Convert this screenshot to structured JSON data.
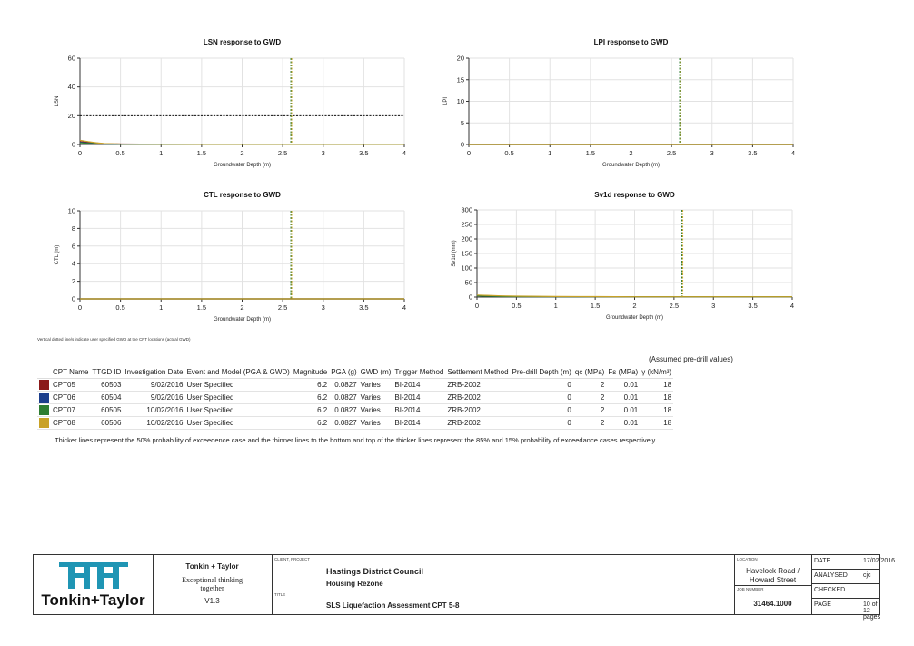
{
  "chart_data": [
    {
      "type": "line",
      "title": "LSN response to GWD",
      "xlabel": "Groundwater Depth (m)",
      "ylabel": "LSN",
      "xlim": [
        0,
        4
      ],
      "ylim": [
        0,
        60
      ],
      "x_ticks": [
        "0",
        "0.5",
        "1",
        "1.5",
        "2",
        "2.5",
        "3",
        "3.5",
        "4"
      ],
      "y_ticks": [
        "0",
        "20",
        "40",
        "60"
      ],
      "x": [
        0,
        0.1,
        0.2,
        0.3,
        0.5,
        1,
        1.5,
        2,
        2.5,
        3,
        3.5,
        4
      ],
      "series": [
        {
          "name": "CPT05",
          "color": "#8b1a1a",
          "values": [
            2,
            1.5,
            1,
            0.5,
            0.3,
            0.2,
            0.1,
            0.1,
            0.1,
            0.1,
            0.1,
            0.1
          ]
        },
        {
          "name": "CPT06",
          "color": "#1c3e8c",
          "values": [
            1.5,
            1,
            0.6,
            0.3,
            0.2,
            0.1,
            0.1,
            0.1,
            0.1,
            0.1,
            0.1,
            0.1
          ]
        },
        {
          "name": "CPT07",
          "color": "#2e7d32",
          "values": [
            1.2,
            0.8,
            0.5,
            0.3,
            0.2,
            0.1,
            0.1,
            0.1,
            0.1,
            0.1,
            0.1,
            0.1
          ]
        },
        {
          "name": "CPT08",
          "color": "#c9a227",
          "values": [
            3,
            2,
            1.2,
            0.6,
            0.3,
            0.2,
            0.1,
            0.1,
            0.1,
            0.1,
            0.1,
            0.1
          ]
        }
      ],
      "hline": 20,
      "vline": 2.6
    },
    {
      "type": "line",
      "title": "LPI response to GWD",
      "xlabel": "Groundwater Depth (m)",
      "ylabel": "LPI",
      "xlim": [
        0,
        4
      ],
      "ylim": [
        0,
        20
      ],
      "x_ticks": [
        "0",
        "0.5",
        "1",
        "1.5",
        "2",
        "2.5",
        "3",
        "3.5",
        "4"
      ],
      "y_ticks": [
        "0",
        "5",
        "10",
        "15",
        "20"
      ],
      "x": [
        0,
        4
      ],
      "series": [
        {
          "name": "CPT05",
          "color": "#8b1a1a",
          "values": [
            0,
            0
          ]
        },
        {
          "name": "CPT06",
          "color": "#1c3e8c",
          "values": [
            0,
            0
          ]
        },
        {
          "name": "CPT07",
          "color": "#2e7d32",
          "values": [
            0,
            0
          ]
        },
        {
          "name": "CPT08",
          "color": "#c9a227",
          "values": [
            0,
            0
          ]
        }
      ],
      "vline": 2.6
    },
    {
      "type": "line",
      "title": "CTL response to GWD",
      "xlabel": "Groundwater Depth (m)",
      "ylabel": "CTL (m)",
      "xlim": [
        0,
        4
      ],
      "ylim": [
        0,
        10
      ],
      "x_ticks": [
        "0",
        "0.5",
        "1",
        "1.5",
        "2",
        "2.5",
        "3",
        "3.5",
        "4"
      ],
      "y_ticks": [
        "0",
        "2",
        "4",
        "6",
        "8",
        "10"
      ],
      "x": [
        0,
        4
      ],
      "series": [
        {
          "name": "CPT05",
          "color": "#8b1a1a",
          "values": [
            0,
            0
          ]
        },
        {
          "name": "CPT06",
          "color": "#1c3e8c",
          "values": [
            0,
            0
          ]
        },
        {
          "name": "CPT07",
          "color": "#2e7d32",
          "values": [
            0,
            0
          ]
        },
        {
          "name": "CPT08",
          "color": "#c9a227",
          "values": [
            0,
            0
          ]
        }
      ],
      "vline": 2.6
    },
    {
      "type": "line",
      "title": "Sv1d response to GWD",
      "xlabel": "Groundwater Depth (m)",
      "ylabel": "Sv1d (mm)",
      "xlim": [
        0,
        4
      ],
      "ylim": [
        0,
        300
      ],
      "x_ticks": [
        "0",
        "0.5",
        "1",
        "1.5",
        "2",
        "2.5",
        "3",
        "3.5",
        "4"
      ],
      "y_ticks": [
        "0",
        "50",
        "100",
        "150",
        "200",
        "250",
        "300"
      ],
      "x": [
        0,
        0.1,
        0.2,
        0.3,
        0.5,
        1,
        1.5,
        2,
        2.5,
        3,
        3.5,
        4
      ],
      "series": [
        {
          "name": "CPT05",
          "color": "#8b1a1a",
          "values": [
            6,
            5,
            4,
            3,
            2,
            1,
            1,
            1,
            1,
            1,
            1,
            1
          ]
        },
        {
          "name": "CPT06",
          "color": "#1c3e8c",
          "values": [
            5,
            4,
            3,
            2,
            1.5,
            1,
            1,
            1,
            1,
            1,
            1,
            1
          ]
        },
        {
          "name": "CPT07",
          "color": "#2e7d32",
          "values": [
            4,
            3,
            2.5,
            2,
            1.5,
            1,
            1,
            1,
            1,
            1,
            1,
            1
          ]
        },
        {
          "name": "CPT08",
          "color": "#c9a227",
          "values": [
            7,
            6,
            5,
            4,
            3,
            2,
            1.5,
            1,
            1,
            1,
            1,
            1
          ]
        }
      ],
      "vline": 2.6
    }
  ],
  "note": "Vertical dotted line/s indicate user specified GWD at the CPT locations (actual GWD)",
  "table": {
    "assumed_label": "(Assumed pre-drill values)",
    "headers": [
      "CPT Name",
      "TTGD ID",
      "Investigation Date",
      "Event and Model (PGA & GWD)",
      "Magnitude",
      "PGA (g)",
      "GWD (m)",
      "Trigger Method",
      "Settlement Method",
      "Pre-drill Depth (m)",
      "qc (MPa)",
      "Fs (MPa)",
      "γ (kN/m³)"
    ],
    "rows": [
      {
        "color": "#8b1a1a",
        "cells": [
          "CPT05",
          "60503",
          "9/02/2016",
          "User Specified",
          "6.2",
          "0.0827",
          "Varies",
          "BI-2014",
          "ZRB-2002",
          "0",
          "2",
          "0.01",
          "18"
        ]
      },
      {
        "color": "#1c3e8c",
        "cells": [
          "CPT06",
          "60504",
          "9/02/2016",
          "User Specified",
          "6.2",
          "0.0827",
          "Varies",
          "BI-2014",
          "ZRB-2002",
          "0",
          "2",
          "0.01",
          "18"
        ]
      },
      {
        "color": "#2e7d32",
        "cells": [
          "CPT07",
          "60505",
          "10/02/2016",
          "User Specified",
          "6.2",
          "0.0827",
          "Varies",
          "BI-2014",
          "ZRB-2002",
          "0",
          "2",
          "0.01",
          "18"
        ]
      },
      {
        "color": "#c9a227",
        "cells": [
          "CPT08",
          "60506",
          "10/02/2016",
          "User Specified",
          "6.2",
          "0.0827",
          "Varies",
          "BI-2014",
          "ZRB-2002",
          "0",
          "2",
          "0.01",
          "18"
        ]
      }
    ],
    "footnote": "Thicker lines represent the 50% probability of exceedence case and the thinner lines to the bottom and top of the thicker lines represent the 85% and 15% probability of exceedance cases respectively."
  },
  "titleblock": {
    "logo_text": "Tonkin+Taylor",
    "company": "Tonkin + Taylor",
    "tagline_1": "Exceptional thinking",
    "tagline_2": "together",
    "version": "V1.3",
    "client_label": "CLIENT, PROJECT",
    "client": "Hastings District Council",
    "project": "Housing Rezone",
    "title_label": "TITLE",
    "title": "SLS Liquefaction Assessment CPT 5-8",
    "location_label": "LOCATION",
    "location_1": "Havelock Road /",
    "location_2": "Howard Street",
    "job_label": "JOB NUMBER",
    "job_number": "31464.1000",
    "date_label": "DATE",
    "date": "17/02/2016",
    "analysed_label": "ANALYSED",
    "analysed": "cjc",
    "checked_label": "CHECKED",
    "checked": "",
    "page_label": "PAGE",
    "page": "10 of 12 pages"
  }
}
